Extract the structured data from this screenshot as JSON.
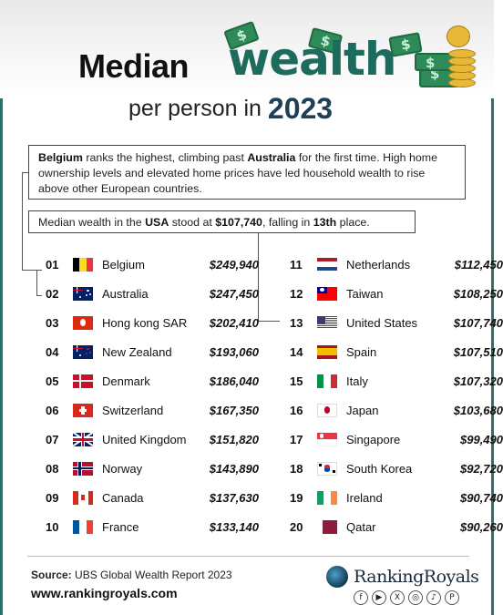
{
  "header": {
    "title_part1": "Median",
    "title_part2": "wealth",
    "subtitle": "per person in",
    "year": "2023"
  },
  "callouts": {
    "box1": {
      "segments": [
        {
          "text": "Belgium",
          "bold": true
        },
        {
          "text": " ranks the highest, climbing past ",
          "bold": false
        },
        {
          "text": "Australia",
          "bold": true
        },
        {
          "text": " for the first time. High home ownership levels and elevated home prices have led household wealth to rise above other European countries.",
          "bold": false
        }
      ]
    },
    "box2": {
      "segments": [
        {
          "text": "Median wealth in the ",
          "bold": false
        },
        {
          "text": "USA",
          "bold": true
        },
        {
          "text": " stood at ",
          "bold": false
        },
        {
          "text": "$107,740",
          "bold": true
        },
        {
          "text": ", falling in ",
          "bold": false
        },
        {
          "text": "13th",
          "bold": true
        },
        {
          "text": " place.",
          "bold": false
        }
      ]
    }
  },
  "rankings_left": [
    {
      "rank": "01",
      "country": "Belgium",
      "value": "$249,940",
      "flag": "belgium"
    },
    {
      "rank": "02",
      "country": "Australia",
      "value": "$247,450",
      "flag": "australia"
    },
    {
      "rank": "03",
      "country": "Hong kong SAR",
      "value": "$202,410",
      "flag": "hongkong"
    },
    {
      "rank": "04",
      "country": "New Zealand",
      "value": "$193,060",
      "flag": "newzealand"
    },
    {
      "rank": "05",
      "country": "Denmark",
      "value": "$186,040",
      "flag": "denmark"
    },
    {
      "rank": "06",
      "country": "Switzerland",
      "value": "$167,350",
      "flag": "switzerland"
    },
    {
      "rank": "07",
      "country": "United Kingdom",
      "value": "$151,820",
      "flag": "uk"
    },
    {
      "rank": "08",
      "country": "Norway",
      "value": "$143,890",
      "flag": "norway"
    },
    {
      "rank": "09",
      "country": "Canada",
      "value": "$137,630",
      "flag": "canada"
    },
    {
      "rank": "10",
      "country": "France",
      "value": "$133,140",
      "flag": "france"
    }
  ],
  "rankings_right": [
    {
      "rank": "11",
      "country": "Netherlands",
      "value": "$112,450",
      "flag": "netherlands"
    },
    {
      "rank": "12",
      "country": "Taiwan",
      "value": "$108,250",
      "flag": "taiwan"
    },
    {
      "rank": "13",
      "country": "United States",
      "value": "$107,740",
      "flag": "usa"
    },
    {
      "rank": "14",
      "country": "Spain",
      "value": "$107,510",
      "flag": "spain"
    },
    {
      "rank": "15",
      "country": "Italy",
      "value": "$107,320",
      "flag": "italy"
    },
    {
      "rank": "16",
      "country": "Japan",
      "value": "$103,680",
      "flag": "japan"
    },
    {
      "rank": "17",
      "country": "Singapore",
      "value": "$99,490",
      "flag": "singapore"
    },
    {
      "rank": "18",
      "country": "South Korea",
      "value": "$92,720",
      "flag": "southkorea"
    },
    {
      "rank": "19",
      "country": "Ireland",
      "value": "$90,740",
      "flag": "ireland"
    },
    {
      "rank": "20",
      "country": "Qatar",
      "value": "$90,260",
      "flag": "qatar"
    }
  ],
  "footer": {
    "source_label": "Source:",
    "source_text": " UBS Global Wealth Report 2023",
    "url": "www.rankingroyals.com",
    "brand": "RankingRoyals",
    "socials": [
      "facebook-icon",
      "youtube-icon",
      "x-icon",
      "instagram-icon",
      "tiktok-icon",
      "pinterest-icon"
    ]
  },
  "colors": {
    "accent": "#1d6b5c",
    "frame": "#2f6f6a",
    "year": "#1f3f57"
  }
}
